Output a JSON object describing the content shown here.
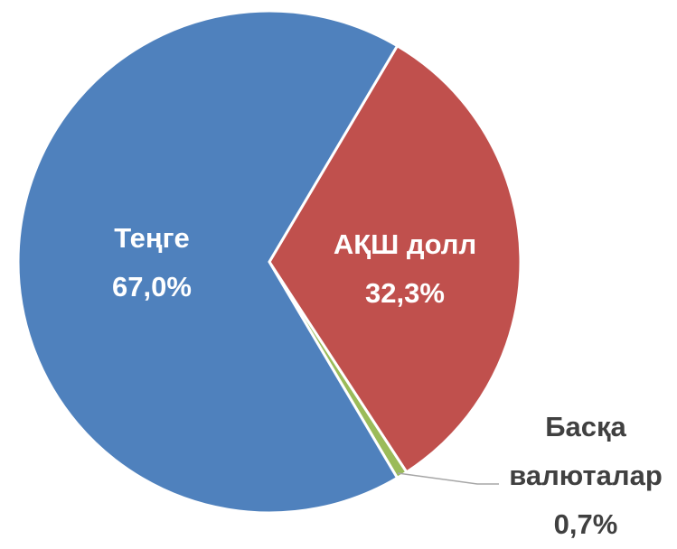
{
  "chart_data": {
    "type": "pie",
    "categories": [
      "Теңге",
      "АҚШ долл",
      "Басқа валюталар"
    ],
    "values": [
      67.0,
      32.3,
      0.7
    ],
    "value_labels": [
      "67,0%",
      "32,3%",
      "0,7%"
    ],
    "colors": [
      "#4f81bd",
      "#c0504d",
      "#9bbb59"
    ]
  }
}
